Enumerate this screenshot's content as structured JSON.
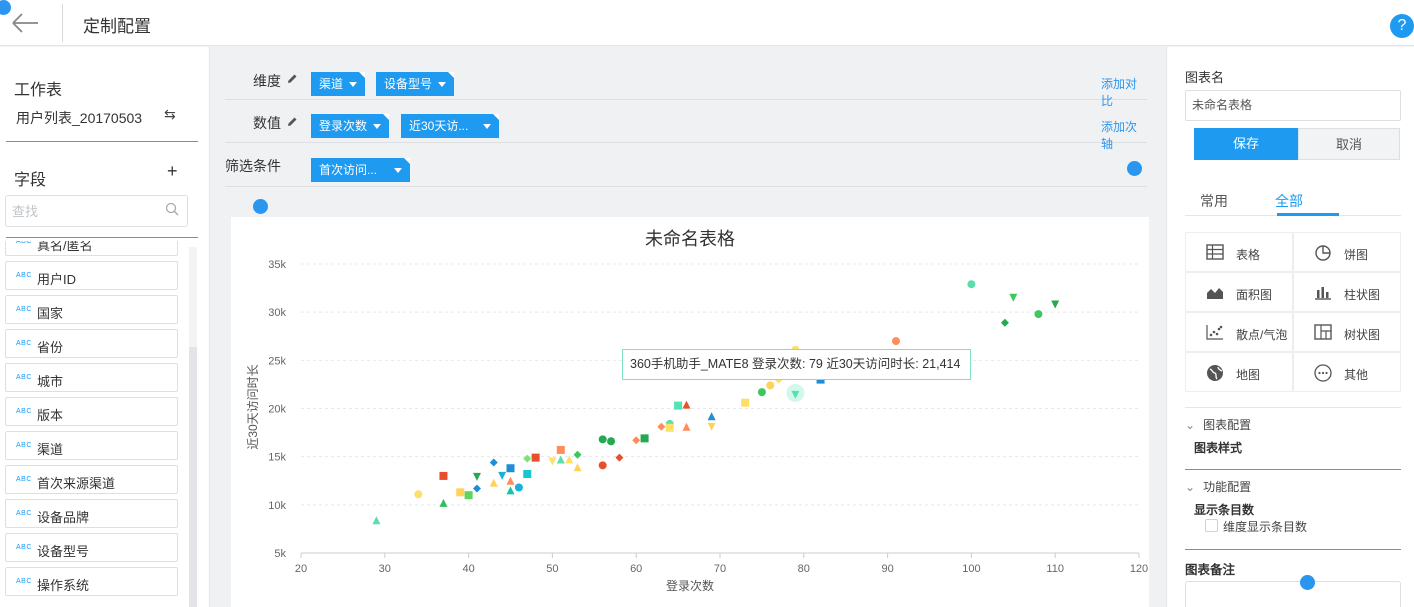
{
  "header": {
    "title": "定制配置",
    "help_label": "?"
  },
  "left": {
    "worksheet_title": "工作表",
    "worksheet_name": "用户列表_20170503",
    "fields_title": "字段",
    "search_placeholder": "查找",
    "field_type_label": "ABC",
    "fields": [
      "真名/匿名",
      "用户ID",
      "国家",
      "省份",
      "城市",
      "版本",
      "渠道",
      "首次来源渠道",
      "设备品牌",
      "设备型号",
      "操作系统"
    ]
  },
  "config": {
    "dimension_label": "维度",
    "dimension_tags": [
      "渠道",
      "设备型号"
    ],
    "add_compare": "添加对比",
    "value_label": "数值",
    "value_tags": [
      "登录次数",
      "近30天访..."
    ],
    "add_axis": "添加次轴",
    "filter_label": "筛选条件",
    "filter_tags": [
      "首次访问..."
    ]
  },
  "chart_data": {
    "type": "scatter",
    "title": "未命名表格",
    "xlabel": "登录次数",
    "ylabel": "近30天访问时长",
    "xlim": [
      20,
      120
    ],
    "ylim": [
      5000,
      35000
    ],
    "x_ticks": [
      "20",
      "30",
      "40",
      "50",
      "60",
      "70",
      "80",
      "90",
      "100",
      "110",
      "120"
    ],
    "y_ticks": [
      "5k",
      "10k",
      "15k",
      "20k",
      "25k",
      "30k",
      "35k"
    ],
    "grid": "horizontal-dotted",
    "tooltip": "360手机助手_MATE8 登录次数: 79 近30天访问时长: 21,414",
    "points": [
      {
        "x": 29,
        "y": 8400,
        "shape": "triangle",
        "color": "#5fdcab"
      },
      {
        "x": 34,
        "y": 11100,
        "shape": "circle",
        "color": "#ffe066"
      },
      {
        "x": 37,
        "y": 13000,
        "shape": "square",
        "color": "#e8502c"
      },
      {
        "x": 37,
        "y": 10200,
        "shape": "triangle",
        "color": "#2fbe5c"
      },
      {
        "x": 39,
        "y": 11300,
        "shape": "square",
        "color": "#ffd25a"
      },
      {
        "x": 40,
        "y": 11000,
        "shape": "square",
        "color": "#5ed65e"
      },
      {
        "x": 41,
        "y": 12900,
        "shape": "tridown",
        "color": "#24a850"
      },
      {
        "x": 41,
        "y": 11700,
        "shape": "diamond",
        "color": "#1e8ed8"
      },
      {
        "x": 43,
        "y": 14400,
        "shape": "diamond",
        "color": "#1e8ed8"
      },
      {
        "x": 43,
        "y": 12300,
        "shape": "triangle",
        "color": "#ffd25a"
      },
      {
        "x": 44,
        "y": 13000,
        "shape": "tridown",
        "color": "#1ab0d8"
      },
      {
        "x": 45,
        "y": 13800,
        "shape": "square",
        "color": "#1e8ed8"
      },
      {
        "x": 45,
        "y": 12500,
        "shape": "triangle",
        "color": "#ff8c5a"
      },
      {
        "x": 45,
        "y": 11500,
        "shape": "triangle",
        "color": "#1ac0a8"
      },
      {
        "x": 46,
        "y": 11800,
        "shape": "circle",
        "color": "#1ab0d8"
      },
      {
        "x": 47,
        "y": 13200,
        "shape": "square",
        "color": "#18c8d0"
      },
      {
        "x": 47,
        "y": 14800,
        "shape": "diamond",
        "color": "#7ee27a"
      },
      {
        "x": 48,
        "y": 14900,
        "shape": "square",
        "color": "#e8502c"
      },
      {
        "x": 50,
        "y": 14500,
        "shape": "tridown",
        "color": "#ffe066"
      },
      {
        "x": 51,
        "y": 15700,
        "shape": "square",
        "color": "#ff8c5a"
      },
      {
        "x": 51,
        "y": 14700,
        "shape": "triangle",
        "color": "#5fdcab"
      },
      {
        "x": 52,
        "y": 14700,
        "shape": "triangle",
        "color": "#ffe066"
      },
      {
        "x": 53,
        "y": 15200,
        "shape": "diamond",
        "color": "#3cc85a"
      },
      {
        "x": 53,
        "y": 13900,
        "shape": "triangle",
        "color": "#ffd25a"
      },
      {
        "x": 56,
        "y": 16800,
        "shape": "circle",
        "color": "#24a850"
      },
      {
        "x": 56,
        "y": 14100,
        "shape": "circle",
        "color": "#e8502c"
      },
      {
        "x": 57,
        "y": 16600,
        "shape": "circle",
        "color": "#24a850"
      },
      {
        "x": 58,
        "y": 14900,
        "shape": "diamond",
        "color": "#e8502c"
      },
      {
        "x": 60,
        "y": 16700,
        "shape": "diamond",
        "color": "#ff8c5a"
      },
      {
        "x": 61,
        "y": 16900,
        "shape": "square",
        "color": "#24a850"
      },
      {
        "x": 63,
        "y": 18100,
        "shape": "diamond",
        "color": "#ff8c5a"
      },
      {
        "x": 64,
        "y": 18400,
        "shape": "circle",
        "color": "#5fdcab"
      },
      {
        "x": 64,
        "y": 18000,
        "shape": "square",
        "color": "#ffe066"
      },
      {
        "x": 65,
        "y": 20300,
        "shape": "square",
        "color": "#4fe4b0"
      },
      {
        "x": 66,
        "y": 20400,
        "shape": "triangle",
        "color": "#e8502c"
      },
      {
        "x": 66,
        "y": 18100,
        "shape": "triangle",
        "color": "#ff8c5a"
      },
      {
        "x": 69,
        "y": 19200,
        "shape": "triangle",
        "color": "#1e8ed8"
      },
      {
        "x": 69,
        "y": 18100,
        "shape": "tridown",
        "color": "#ffd25a"
      },
      {
        "x": 73,
        "y": 20600,
        "shape": "square",
        "color": "#ffe066"
      },
      {
        "x": 75,
        "y": 21700,
        "shape": "circle",
        "color": "#3cc85a"
      },
      {
        "x": 76,
        "y": 22400,
        "shape": "circle",
        "color": "#ffd25a"
      },
      {
        "x": 77,
        "y": 23000,
        "shape": "diamond",
        "color": "#ffe066"
      },
      {
        "x": 79,
        "y": 21414,
        "shape": "tridown",
        "color": "#4fe4b0"
      },
      {
        "x": 79,
        "y": 26100,
        "shape": "circle",
        "color": "#ffe066"
      },
      {
        "x": 82,
        "y": 23000,
        "shape": "square",
        "color": "#1e8ed8"
      },
      {
        "x": 91,
        "y": 27000,
        "shape": "circle",
        "color": "#ff8c5a"
      },
      {
        "x": 100,
        "y": 32900,
        "shape": "circle",
        "color": "#5fdcab"
      },
      {
        "x": 104,
        "y": 28900,
        "shape": "diamond",
        "color": "#24a850"
      },
      {
        "x": 105,
        "y": 31500,
        "shape": "tridown",
        "color": "#3cc85a"
      },
      {
        "x": 108,
        "y": 29800,
        "shape": "circle",
        "color": "#3cc85a"
      },
      {
        "x": 110,
        "y": 30800,
        "shape": "tridown",
        "color": "#24a850"
      }
    ]
  },
  "right": {
    "chart_name_label": "图表名",
    "chart_name_value": "未命名表格",
    "save": "保存",
    "cancel": "取消",
    "tabs": [
      "常用",
      "全部"
    ],
    "chart_types": [
      "表格",
      "饼图",
      "面积图",
      "柱状图",
      "散点/气泡",
      "树状图",
      "地图",
      "其他"
    ],
    "chart_config": "图表配置",
    "chart_style": "图表样式",
    "func_config": "功能配置",
    "show_count": "显示条目数",
    "dim_show_count": "维度显示条目数",
    "chart_note": "图表备注"
  }
}
